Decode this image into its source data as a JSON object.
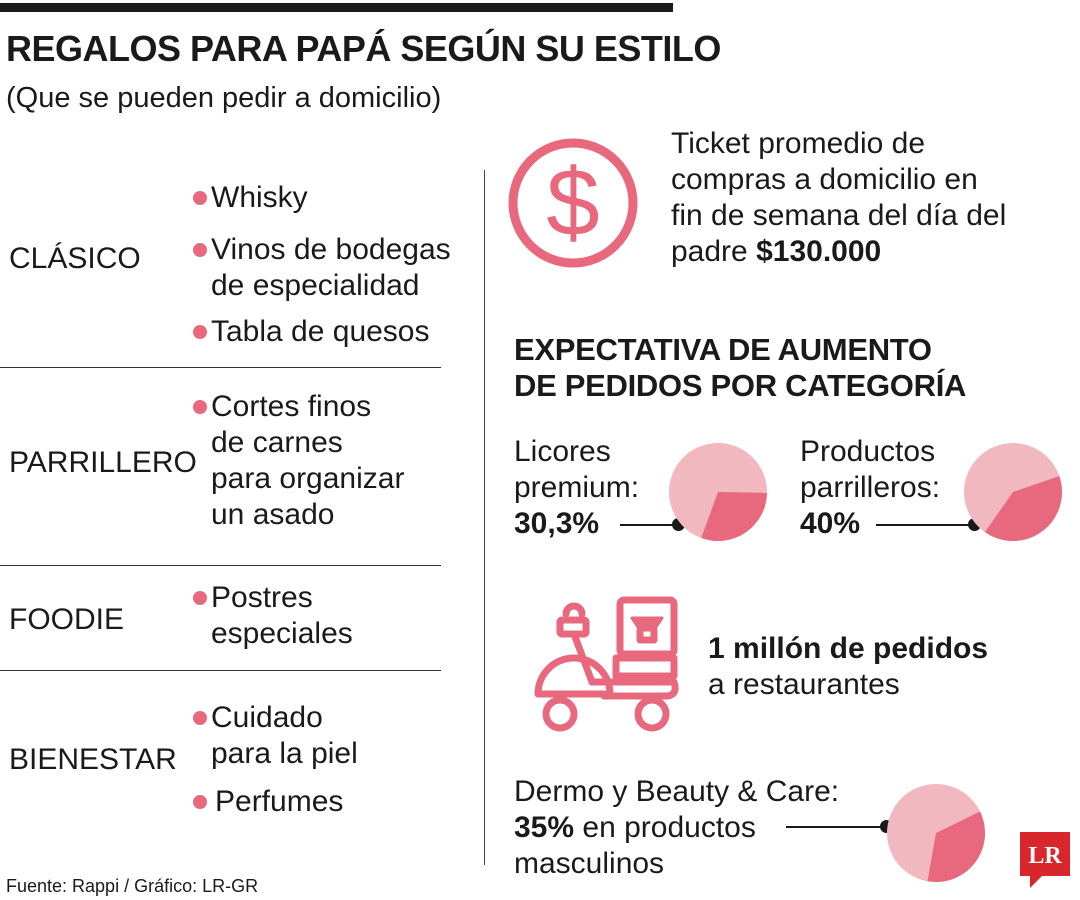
{
  "header": {
    "title": "REGALOS PARA PAPÁ SEGÚN SU ESTILO",
    "subtitle": "(Que se pueden pedir a domicilio)"
  },
  "categories": [
    {
      "label": "CLÁSICO",
      "items": [
        [
          "Whisky"
        ],
        [
          "Vinos de bodegas",
          "de especialidad"
        ],
        [
          "Tabla de quesos"
        ]
      ]
    },
    {
      "label": "PARRILLERO",
      "items": [
        [
          "Cortes finos",
          "de carnes",
          "para organizar",
          "un asado"
        ]
      ]
    },
    {
      "label": "FOODIE",
      "items": [
        [
          "Postres",
          "especiales"
        ]
      ]
    },
    {
      "label": "BIENESTAR",
      "items": [
        [
          "Cuidado",
          "para la piel"
        ],
        [
          "Perfumes"
        ]
      ]
    }
  ],
  "ticket": {
    "lines": [
      "Ticket promedio de",
      "compras a domicilio en",
      "fin de semana del día del"
    ],
    "last_line_prefix": "padre ",
    "amount": "$130.000",
    "icon": "dollar-circle-icon"
  },
  "expectation": {
    "heading_lines": [
      "EXPECTATIVA DE AUMENTO",
      "DE PEDIDOS POR CATEGORÍA"
    ],
    "items": [
      {
        "label_lines": [
          "Licores",
          "premium:"
        ],
        "value_label": "30,3%",
        "value": 30.3
      },
      {
        "label_lines": [
          "Productos",
          "parrilleros:"
        ],
        "value_label": "40%",
        "value": 40
      }
    ]
  },
  "orders": {
    "bold_text": "1 millón de pedidos",
    "text": "a restaurantes",
    "icon": "delivery-scooter-icon"
  },
  "dermo": {
    "line1": "Dermo y Beauty & Care:",
    "value_label": "35%",
    "line2_suffix": " en productos",
    "line3": "masculinos",
    "value": 35
  },
  "source": "Fuente: Rappi / Gráfico: LR-GR",
  "logo": {
    "text": "LR"
  },
  "colors": {
    "accent": "#e8697e",
    "pie_light": "#f2b8bf",
    "pie_dark": "#e8697e",
    "logo_red": "#d9262c",
    "text": "#1a1a1a"
  }
}
